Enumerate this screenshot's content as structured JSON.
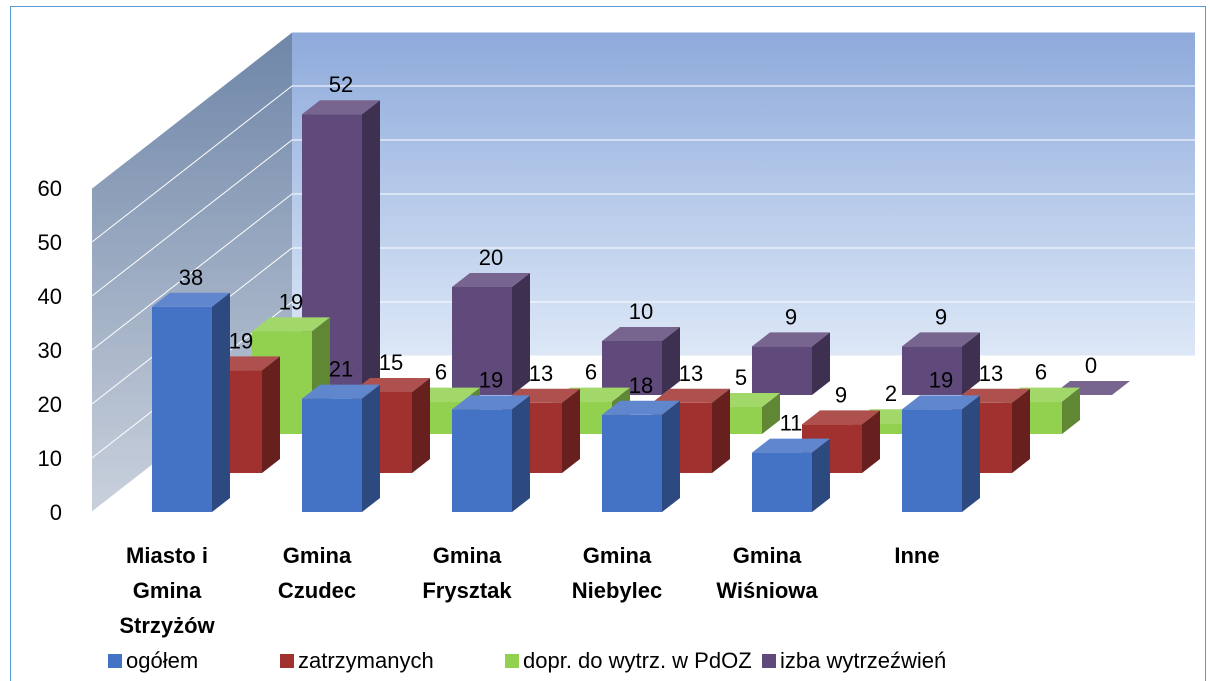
{
  "chart_data": {
    "type": "bar3d",
    "categories": [
      "Miasto i Gmina Strzyżów",
      "Gmina Czudec",
      "Gmina Frysztak",
      "Gmina Niebylec",
      "Gmina Wiśniowa",
      "Inne"
    ],
    "series": [
      {
        "name": "ogółem",
        "color": "#4472c4",
        "values": [
          38,
          21,
          19,
          18,
          11,
          19
        ]
      },
      {
        "name": "zatrzymanych",
        "color": "#a0312f",
        "values": [
          19,
          15,
          13,
          13,
          9,
          13
        ]
      },
      {
        "name": "dopr. do wytrz. w PdOZ",
        "color": "#92d050",
        "values": [
          19,
          6,
          6,
          5,
          2,
          6
        ]
      },
      {
        "name": "izba wytrzeźwień",
        "color": "#604a7b",
        "values": [
          52,
          20,
          10,
          9,
          9,
          0
        ]
      }
    ],
    "ylim": [
      0,
      60
    ],
    "yticks": [
      0,
      10,
      20,
      30,
      40,
      50,
      60
    ],
    "grid": true,
    "legend": "bottom"
  }
}
